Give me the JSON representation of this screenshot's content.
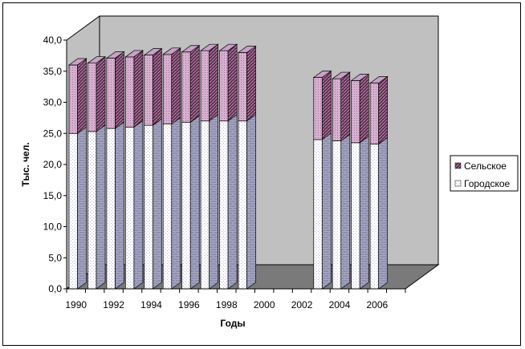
{
  "chart_data": {
    "type": "bar",
    "stacked": true,
    "three_d": true,
    "xlabel": "Годы",
    "ylabel": "Тыс. чел.",
    "ylim": [
      0,
      40
    ],
    "yticks": [
      "0,0",
      "5,0",
      "10,0",
      "15,0",
      "20,0",
      "25,0",
      "30,0",
      "35,0",
      "40,0"
    ],
    "xtick_labels": [
      "1990",
      "1992",
      "1994",
      "1996",
      "1998",
      "2000",
      "2002",
      "2004",
      "2006"
    ],
    "categories": [
      "1990",
      "1991",
      "1992",
      "1993",
      "1994",
      "1995",
      "1996",
      "1997",
      "1998",
      "1999",
      "2000",
      "2001",
      "2002",
      "2003",
      "2004",
      "2005",
      "2006",
      "2007"
    ],
    "series": [
      {
        "name": "Городское",
        "values": [
          25.0,
          25.3,
          25.8,
          26.0,
          26.3,
          26.5,
          26.8,
          27.0,
          27.0,
          27.0,
          null,
          null,
          null,
          24.0,
          23.8,
          23.5,
          23.3,
          null
        ],
        "color": "#ffffff"
      },
      {
        "name": "Сельское",
        "values": [
          11.0,
          11.0,
          11.3,
          11.3,
          11.3,
          11.2,
          11.3,
          11.3,
          11.3,
          11.0,
          null,
          null,
          null,
          10.0,
          10.0,
          10.0,
          9.8,
          null
        ],
        "color": "#c8a0c8"
      }
    ],
    "legend_position": "right",
    "grid": false
  }
}
